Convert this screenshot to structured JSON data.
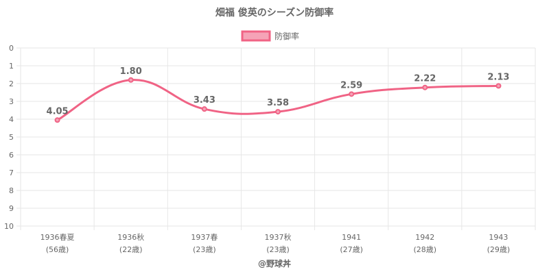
{
  "chart_data": {
    "type": "line",
    "title": "畑福 俊英のシーズン防御率",
    "categories": [
      [
        "1936春夏",
        "(56歳)"
      ],
      [
        "1936秋",
        "(22歳)"
      ],
      [
        "1937春",
        "(23歳)"
      ],
      [
        "1937秋",
        "(23歳)"
      ],
      [
        "1941",
        "(27歳)"
      ],
      [
        "1942",
        "(28歳)"
      ],
      [
        "1943",
        "(29歳)"
      ]
    ],
    "series": [
      {
        "name": "防御率",
        "values": [
          4.05,
          1.8,
          3.43,
          3.58,
          2.59,
          2.22,
          2.13
        ],
        "labels": [
          "4.05",
          "1.80",
          "3.43",
          "3.58",
          "2.59",
          "2.22",
          "2.13"
        ]
      }
    ],
    "y_ticks": [
      "0",
      "1",
      "2",
      "3",
      "4",
      "5",
      "6",
      "7",
      "8",
      "9",
      "10"
    ],
    "ylim": [
      0,
      10
    ],
    "y_reversed": true,
    "legend_position": "top",
    "grid": true,
    "colors": {
      "line": "#f06385",
      "fill": "#f5a3b7"
    },
    "footer": "@野球丼"
  }
}
